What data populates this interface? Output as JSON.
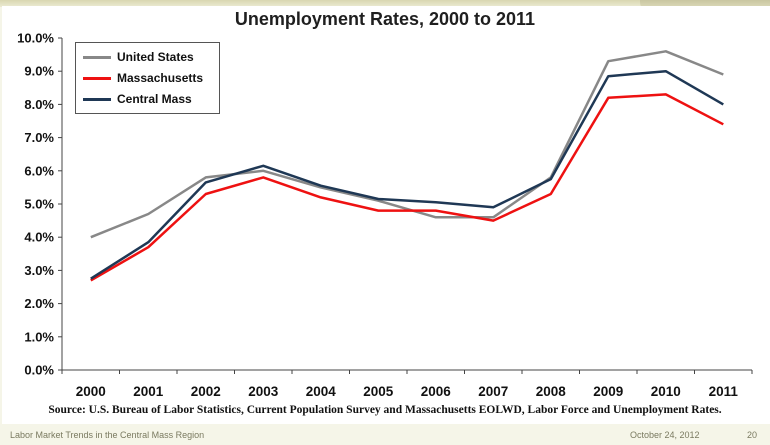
{
  "chart_data": {
    "type": "line",
    "title": "Unemployment Rates, 2000 to 2011",
    "categories": [
      "2000",
      "2001",
      "2002",
      "2003",
      "2004",
      "2005",
      "2006",
      "2007",
      "2008",
      "2009",
      "2010",
      "2011"
    ],
    "series": [
      {
        "name": "United States",
        "color": "#888888",
        "values": [
          4.0,
          4.7,
          5.8,
          6.0,
          5.5,
          5.1,
          4.6,
          4.6,
          5.8,
          9.3,
          9.6,
          8.9
        ]
      },
      {
        "name": "Massachusetts",
        "color": "#ee1111",
        "values": [
          2.7,
          3.7,
          5.3,
          5.8,
          5.2,
          4.8,
          4.8,
          4.5,
          5.3,
          8.2,
          8.3,
          7.4
        ]
      },
      {
        "name": "Central Mass",
        "color": "#1f3855",
        "values": [
          2.75,
          3.85,
          5.65,
          6.15,
          5.55,
          5.15,
          5.05,
          4.9,
          5.75,
          8.85,
          9.0,
          8.0
        ]
      }
    ],
    "ylim": [
      0,
      10
    ],
    "yticks": [
      "0.0%",
      "1.0%",
      "2.0%",
      "3.0%",
      "4.0%",
      "5.0%",
      "6.0%",
      "7.0%",
      "8.0%",
      "9.0%",
      "10.0%"
    ],
    "xlabel": "",
    "ylabel": "",
    "grid": false,
    "legend_position": "top-left"
  },
  "source": "Source: U.S. Bureau of Labor Statistics, Current Population Survey and Massachusetts EOLWD, Labor Force and Unemployment Rates.",
  "footer": {
    "left": "Labor Market Trends in the Central Mass Region",
    "date": "October 24, 2012",
    "page": "20"
  }
}
